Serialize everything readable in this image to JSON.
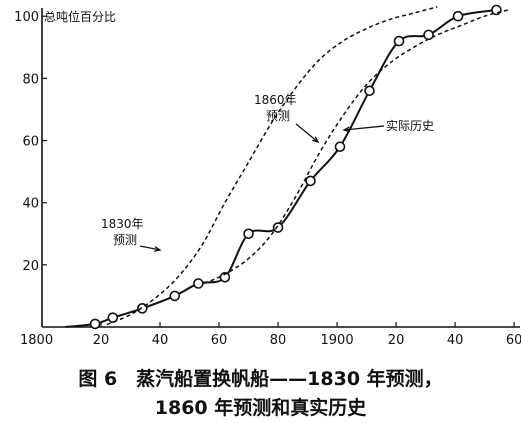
{
  "chart_data": {
    "type": "line",
    "title": "",
    "xlabel": "",
    "ylabel": "总吨位百分比",
    "xlim": [
      1800,
      1962
    ],
    "ylim": [
      0,
      102
    ],
    "x_ticks": [
      1800,
      1820,
      1840,
      1860,
      1880,
      1900,
      1920,
      1940,
      1960
    ],
    "x_tick_labels": [
      "1800",
      "20",
      "40",
      "60",
      "80",
      "1900",
      "20",
      "40",
      "60"
    ],
    "y_ticks": [
      20,
      40,
      60,
      80,
      100
    ],
    "y_tick_labels": [
      "20",
      "40",
      "60",
      "80",
      "100"
    ],
    "grid": false,
    "series": [
      {
        "name": "实际历史",
        "style": "solid",
        "markers": true,
        "x": [
          1808,
          1818,
          1824,
          1834,
          1845,
          1853,
          1862,
          1870,
          1880,
          1891,
          1901,
          1911,
          1921,
          1931,
          1941,
          1954
        ],
        "y": [
          0,
          1,
          3,
          6,
          10,
          14,
          16,
          30,
          32,
          47,
          58,
          76,
          92,
          94,
          100,
          102
        ]
      },
      {
        "name": "1830年预测",
        "style": "dashed",
        "markers": false,
        "x": [
          1822,
          1830,
          1838,
          1846,
          1854,
          1862,
          1870,
          1878,
          1886,
          1894,
          1902,
          1910,
          1918,
          1926,
          1934,
          1942
        ],
        "y": [
          0.8,
          4,
          9,
          16,
          26,
          40,
          53,
          66,
          77,
          86,
          92,
          96,
          99,
          101,
          103,
          105
        ]
      },
      {
        "name": "1860年预测",
        "style": "dashed",
        "markers": false,
        "x": [
          1855,
          1862,
          1870,
          1878,
          1886,
          1894,
          1902,
          1910,
          1918,
          1926,
          1934,
          1942,
          1950,
          1958
        ],
        "y": [
          14,
          17,
          22,
          30,
          42,
          56,
          68,
          78,
          85,
          90,
          94,
          97,
          100,
          102
        ]
      }
    ],
    "annotations": [
      {
        "text": [
          "1830年",
          "预测"
        ],
        "target_x": 1846,
        "target_y": 16
      },
      {
        "text": [
          "1860年",
          "预测"
        ],
        "target_x": 1885,
        "target_y": 60
      },
      {
        "text": [
          "实际历史"
        ],
        "target_x": 1894,
        "target_y": 65
      }
    ]
  },
  "caption": {
    "line1": "图 6　蒸汽船置换帆船——1830 年预测，",
    "line2": "1860 年预测和真实历史"
  }
}
